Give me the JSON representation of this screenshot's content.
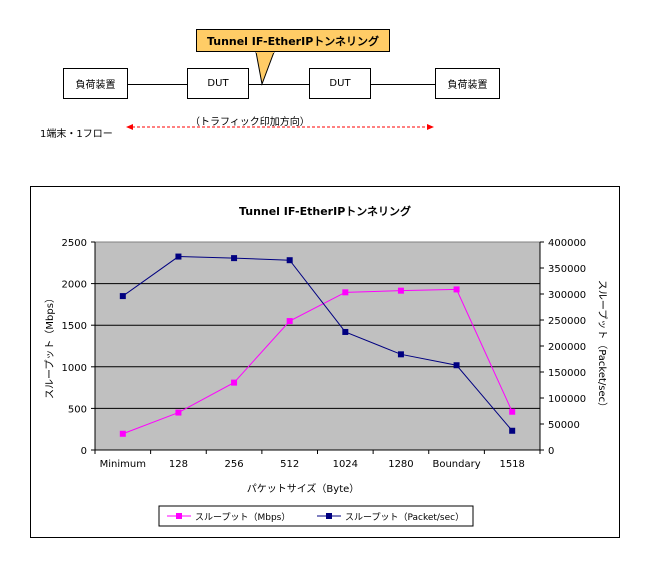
{
  "diagram": {
    "load_left": "負荷装置",
    "dut_left": "DUT",
    "dut_right": "DUT",
    "load_right": "負荷装置",
    "callout": "Tunnel IF-EtherIPトンネリング",
    "direction_label": "（トラフィック印加方向）",
    "flow_label": "1端末・1フロー"
  },
  "chart_data": {
    "type": "line",
    "title": "Tunnel IF-EtherIPトンネリング",
    "xlabel": "パケットサイズ（Byte）",
    "ylabel": "スループット（Mbps）",
    "y2label": "スループット（Packet/sec）",
    "categories": [
      "Minimum",
      "128",
      "256",
      "512",
      "1024",
      "1280",
      "Boundary",
      "1518"
    ],
    "ylim": [
      0,
      2500
    ],
    "yticks": [
      "0",
      "500",
      "1000",
      "1500",
      "2000",
      "2500"
    ],
    "y2lim": [
      0,
      400000
    ],
    "y2ticks": [
      "0",
      "50000",
      "100000",
      "150000",
      "200000",
      "250000",
      "300000",
      "350000",
      "400000"
    ],
    "series": [
      {
        "name": "スループット（Mbps）",
        "axis": "left",
        "color": "#ff00ff",
        "marker": "square",
        "values": [
          195,
          450,
          810,
          1550,
          1895,
          1915,
          1930,
          460
        ]
      },
      {
        "name": "スループット（Packet/sec）",
        "axis": "right",
        "color": "#000080",
        "marker": "square",
        "values": [
          296000,
          372000,
          369000,
          365000,
          227000,
          184000,
          163000,
          37000
        ]
      }
    ],
    "grid": true,
    "legend_position": "bottom"
  }
}
